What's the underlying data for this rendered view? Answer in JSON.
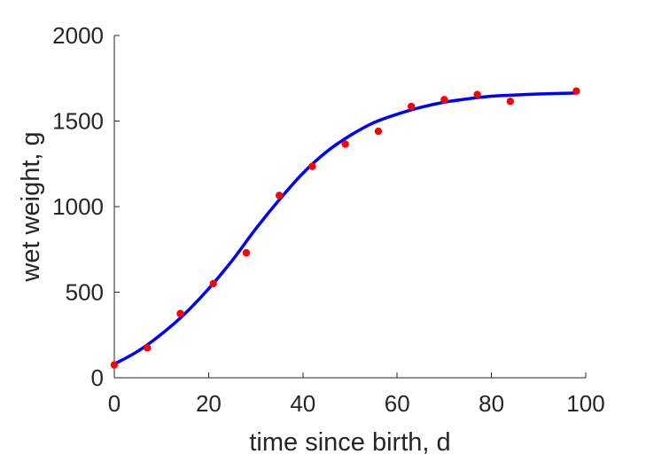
{
  "chart_data": {
    "type": "scatter",
    "xlabel": "time since birth, d",
    "ylabel": "wet weight, g",
    "xlim": [
      0,
      100
    ],
    "ylim": [
      0,
      2000
    ],
    "xticks": [
      0,
      20,
      40,
      60,
      80,
      100
    ],
    "yticks": [
      0,
      500,
      1000,
      1500,
      2000
    ],
    "xtick_labels": [
      "0",
      "20",
      "40",
      "60",
      "80",
      "100"
    ],
    "ytick_labels": [
      "0",
      "500",
      "1000",
      "1500",
      "2000"
    ],
    "grid": false,
    "legend": "none",
    "series": [
      {
        "kind": "points",
        "color": "#ff0000",
        "x": [
          0,
          7,
          14,
          21,
          28,
          35,
          42,
          49,
          56,
          63,
          70,
          77,
          84,
          98
        ],
        "y": [
          75,
          175,
          375,
          550,
          730,
          1065,
          1235,
          1365,
          1440,
          1585,
          1625,
          1655,
          1615,
          1675
        ]
      },
      {
        "kind": "line",
        "color": "#0000ff",
        "x": [
          0,
          5,
          10,
          15,
          20,
          25,
          30,
          35,
          40,
          45,
          50,
          55,
          60,
          65,
          70,
          75,
          80,
          85,
          90,
          95,
          98
        ],
        "y": [
          80,
          155,
          255,
          375,
          520,
          685,
          870,
          1040,
          1195,
          1320,
          1415,
          1490,
          1540,
          1580,
          1610,
          1630,
          1645,
          1652,
          1658,
          1662,
          1664
        ]
      }
    ]
  }
}
